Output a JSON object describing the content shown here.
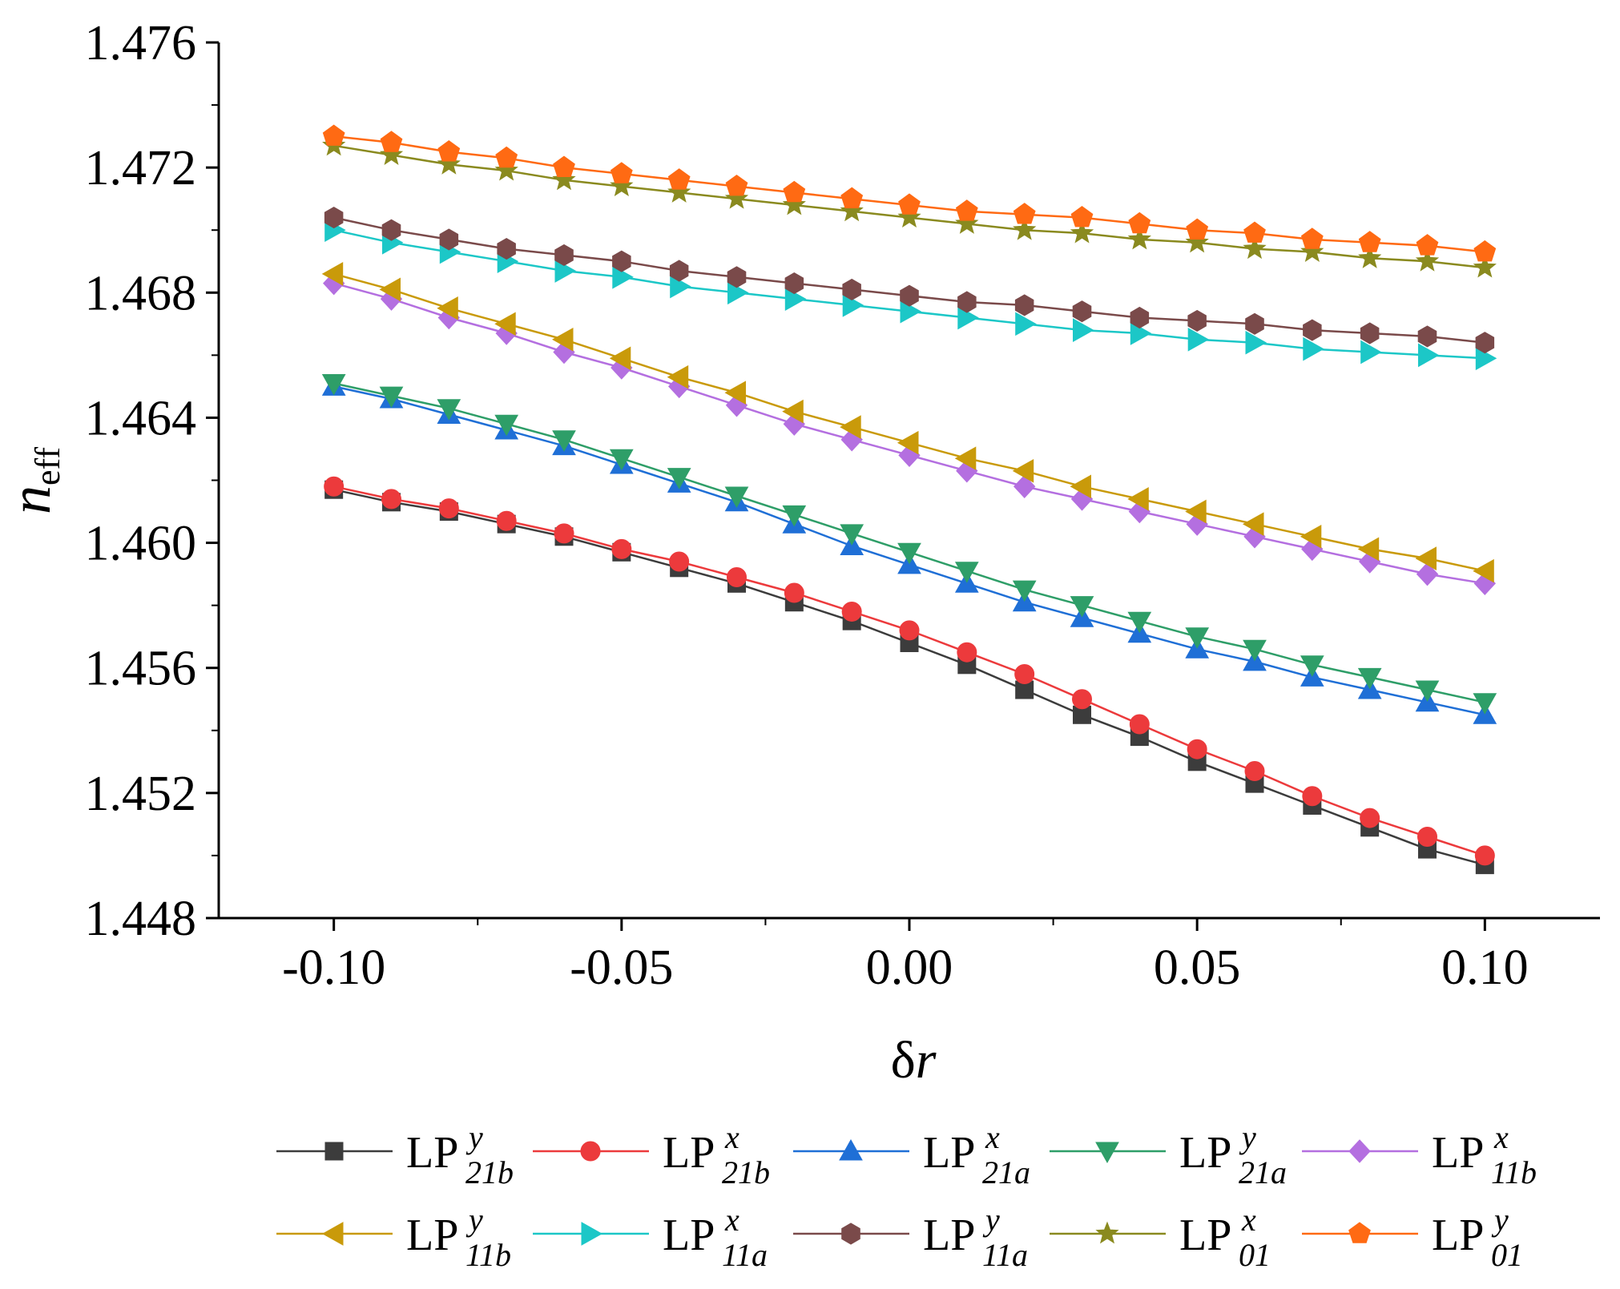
{
  "chart_data": {
    "type": "line",
    "title": "",
    "xlabel": {
      "main": "δ",
      "italic": "r"
    },
    "ylabel": {
      "main": "n",
      "sub": "eff"
    },
    "xlim": [
      -0.12,
      0.12
    ],
    "ylim": [
      1.448,
      1.476
    ],
    "x_ticks": [
      -0.1,
      -0.05,
      0.0,
      0.05,
      0.1
    ],
    "x_tick_labels": [
      "-0.10",
      "-0.05",
      "0.00",
      "0.05",
      "0.10"
    ],
    "y_ticks": [
      1.448,
      1.452,
      1.456,
      1.46,
      1.464,
      1.468,
      1.472,
      1.476
    ],
    "y_tick_labels": [
      "1.448",
      "1.452",
      "1.456",
      "1.460",
      "1.464",
      "1.468",
      "1.472",
      "1.476"
    ],
    "legend_position": "bottom",
    "x": [
      -0.1,
      -0.09,
      -0.08,
      -0.07,
      -0.06,
      -0.05,
      -0.04,
      -0.03,
      -0.02,
      -0.01,
      0.0,
      0.01,
      0.02,
      0.03,
      0.04,
      0.05,
      0.06,
      0.07,
      0.08,
      0.09,
      0.1
    ],
    "series": [
      {
        "name": "LP21b y",
        "base": "LP",
        "sup": "y",
        "sub": "21b",
        "color": "#3c3c3c",
        "marker": "square",
        "values": [
          1.4617,
          1.4613,
          1.461,
          1.4606,
          1.4602,
          1.4597,
          1.4592,
          1.4587,
          1.4581,
          1.4575,
          1.4568,
          1.4561,
          1.4553,
          1.4545,
          1.4538,
          1.453,
          1.4523,
          1.4516,
          1.4509,
          1.4502,
          1.4497
        ]
      },
      {
        "name": "LP21b x",
        "base": "LP",
        "sup": "x",
        "sub": "21b",
        "color": "#ec3a3c",
        "marker": "circle",
        "values": [
          1.4618,
          1.4614,
          1.4611,
          1.4607,
          1.4603,
          1.4598,
          1.4594,
          1.4589,
          1.4584,
          1.4578,
          1.4572,
          1.4565,
          1.4558,
          1.455,
          1.4542,
          1.4534,
          1.4527,
          1.4519,
          1.4512,
          1.4506,
          1.45
        ]
      },
      {
        "name": "LP21a x",
        "base": "LP",
        "sup": "x",
        "sub": "21a",
        "color": "#1f6fd6",
        "marker": "triangle-up",
        "values": [
          1.465,
          1.4646,
          1.4641,
          1.4636,
          1.4631,
          1.4625,
          1.4619,
          1.4613,
          1.4606,
          1.4599,
          1.4593,
          1.4587,
          1.4581,
          1.4576,
          1.4571,
          1.4566,
          1.4562,
          1.4557,
          1.4553,
          1.4549,
          1.4545
        ]
      },
      {
        "name": "LP21a y",
        "base": "LP",
        "sup": "y",
        "sub": "21a",
        "color": "#2e9e68",
        "marker": "triangle-down",
        "values": [
          1.4651,
          1.4647,
          1.4643,
          1.4638,
          1.4633,
          1.4627,
          1.4621,
          1.4615,
          1.4609,
          1.4603,
          1.4597,
          1.4591,
          1.4585,
          1.458,
          1.4575,
          1.457,
          1.4566,
          1.4561,
          1.4557,
          1.4553,
          1.4549
        ]
      },
      {
        "name": "LP11b x",
        "base": "LP",
        "sup": "x",
        "sub": "11b",
        "color": "#b46fe0",
        "marker": "diamond",
        "values": [
          1.4683,
          1.4678,
          1.4672,
          1.4667,
          1.4661,
          1.4656,
          1.465,
          1.4644,
          1.4638,
          1.4633,
          1.4628,
          1.4623,
          1.4618,
          1.4614,
          1.461,
          1.4606,
          1.4602,
          1.4598,
          1.4594,
          1.459,
          1.4587
        ]
      },
      {
        "name": "LP11b y",
        "base": "LP",
        "sup": "y",
        "sub": "11b",
        "color": "#c99a0a",
        "marker": "triangle-left",
        "values": [
          1.4686,
          1.4681,
          1.4675,
          1.467,
          1.4665,
          1.4659,
          1.4653,
          1.4648,
          1.4642,
          1.4637,
          1.4632,
          1.4627,
          1.4623,
          1.4618,
          1.4614,
          1.461,
          1.4606,
          1.4602,
          1.4598,
          1.4595,
          1.4591
        ]
      },
      {
        "name": "LP11a x",
        "base": "LP",
        "sup": "x",
        "sub": "11a",
        "color": "#1cc7c7",
        "marker": "triangle-right",
        "values": [
          1.47,
          1.4696,
          1.4693,
          1.469,
          1.4687,
          1.4685,
          1.4682,
          1.468,
          1.4678,
          1.4676,
          1.4674,
          1.4672,
          1.467,
          1.4668,
          1.4667,
          1.4665,
          1.4664,
          1.4662,
          1.4661,
          1.466,
          1.4659
        ]
      },
      {
        "name": "LP11a y",
        "base": "LP",
        "sup": "y",
        "sub": "11a",
        "color": "#7a4a4a",
        "marker": "hexagon",
        "values": [
          1.4704,
          1.47,
          1.4697,
          1.4694,
          1.4692,
          1.469,
          1.4687,
          1.4685,
          1.4683,
          1.4681,
          1.4679,
          1.4677,
          1.4676,
          1.4674,
          1.4672,
          1.4671,
          1.467,
          1.4668,
          1.4667,
          1.4666,
          1.4664
        ]
      },
      {
        "name": "LP01 x",
        "base": "LP",
        "sup": "x",
        "sub": "01",
        "color": "#8a8a1f",
        "marker": "star",
        "values": [
          1.4727,
          1.4724,
          1.4721,
          1.4719,
          1.4716,
          1.4714,
          1.4712,
          1.471,
          1.4708,
          1.4706,
          1.4704,
          1.4702,
          1.47,
          1.4699,
          1.4697,
          1.4696,
          1.4694,
          1.4693,
          1.4691,
          1.469,
          1.4688
        ]
      },
      {
        "name": "LP01 y",
        "base": "LP",
        "sup": "y",
        "sub": "01",
        "color": "#ff6a13",
        "marker": "pentagon",
        "values": [
          1.473,
          1.4728,
          1.4725,
          1.4723,
          1.472,
          1.4718,
          1.4716,
          1.4714,
          1.4712,
          1.471,
          1.4708,
          1.4706,
          1.4705,
          1.4704,
          1.4702,
          1.47,
          1.4699,
          1.4697,
          1.4696,
          1.4695,
          1.4693
        ]
      }
    ]
  }
}
